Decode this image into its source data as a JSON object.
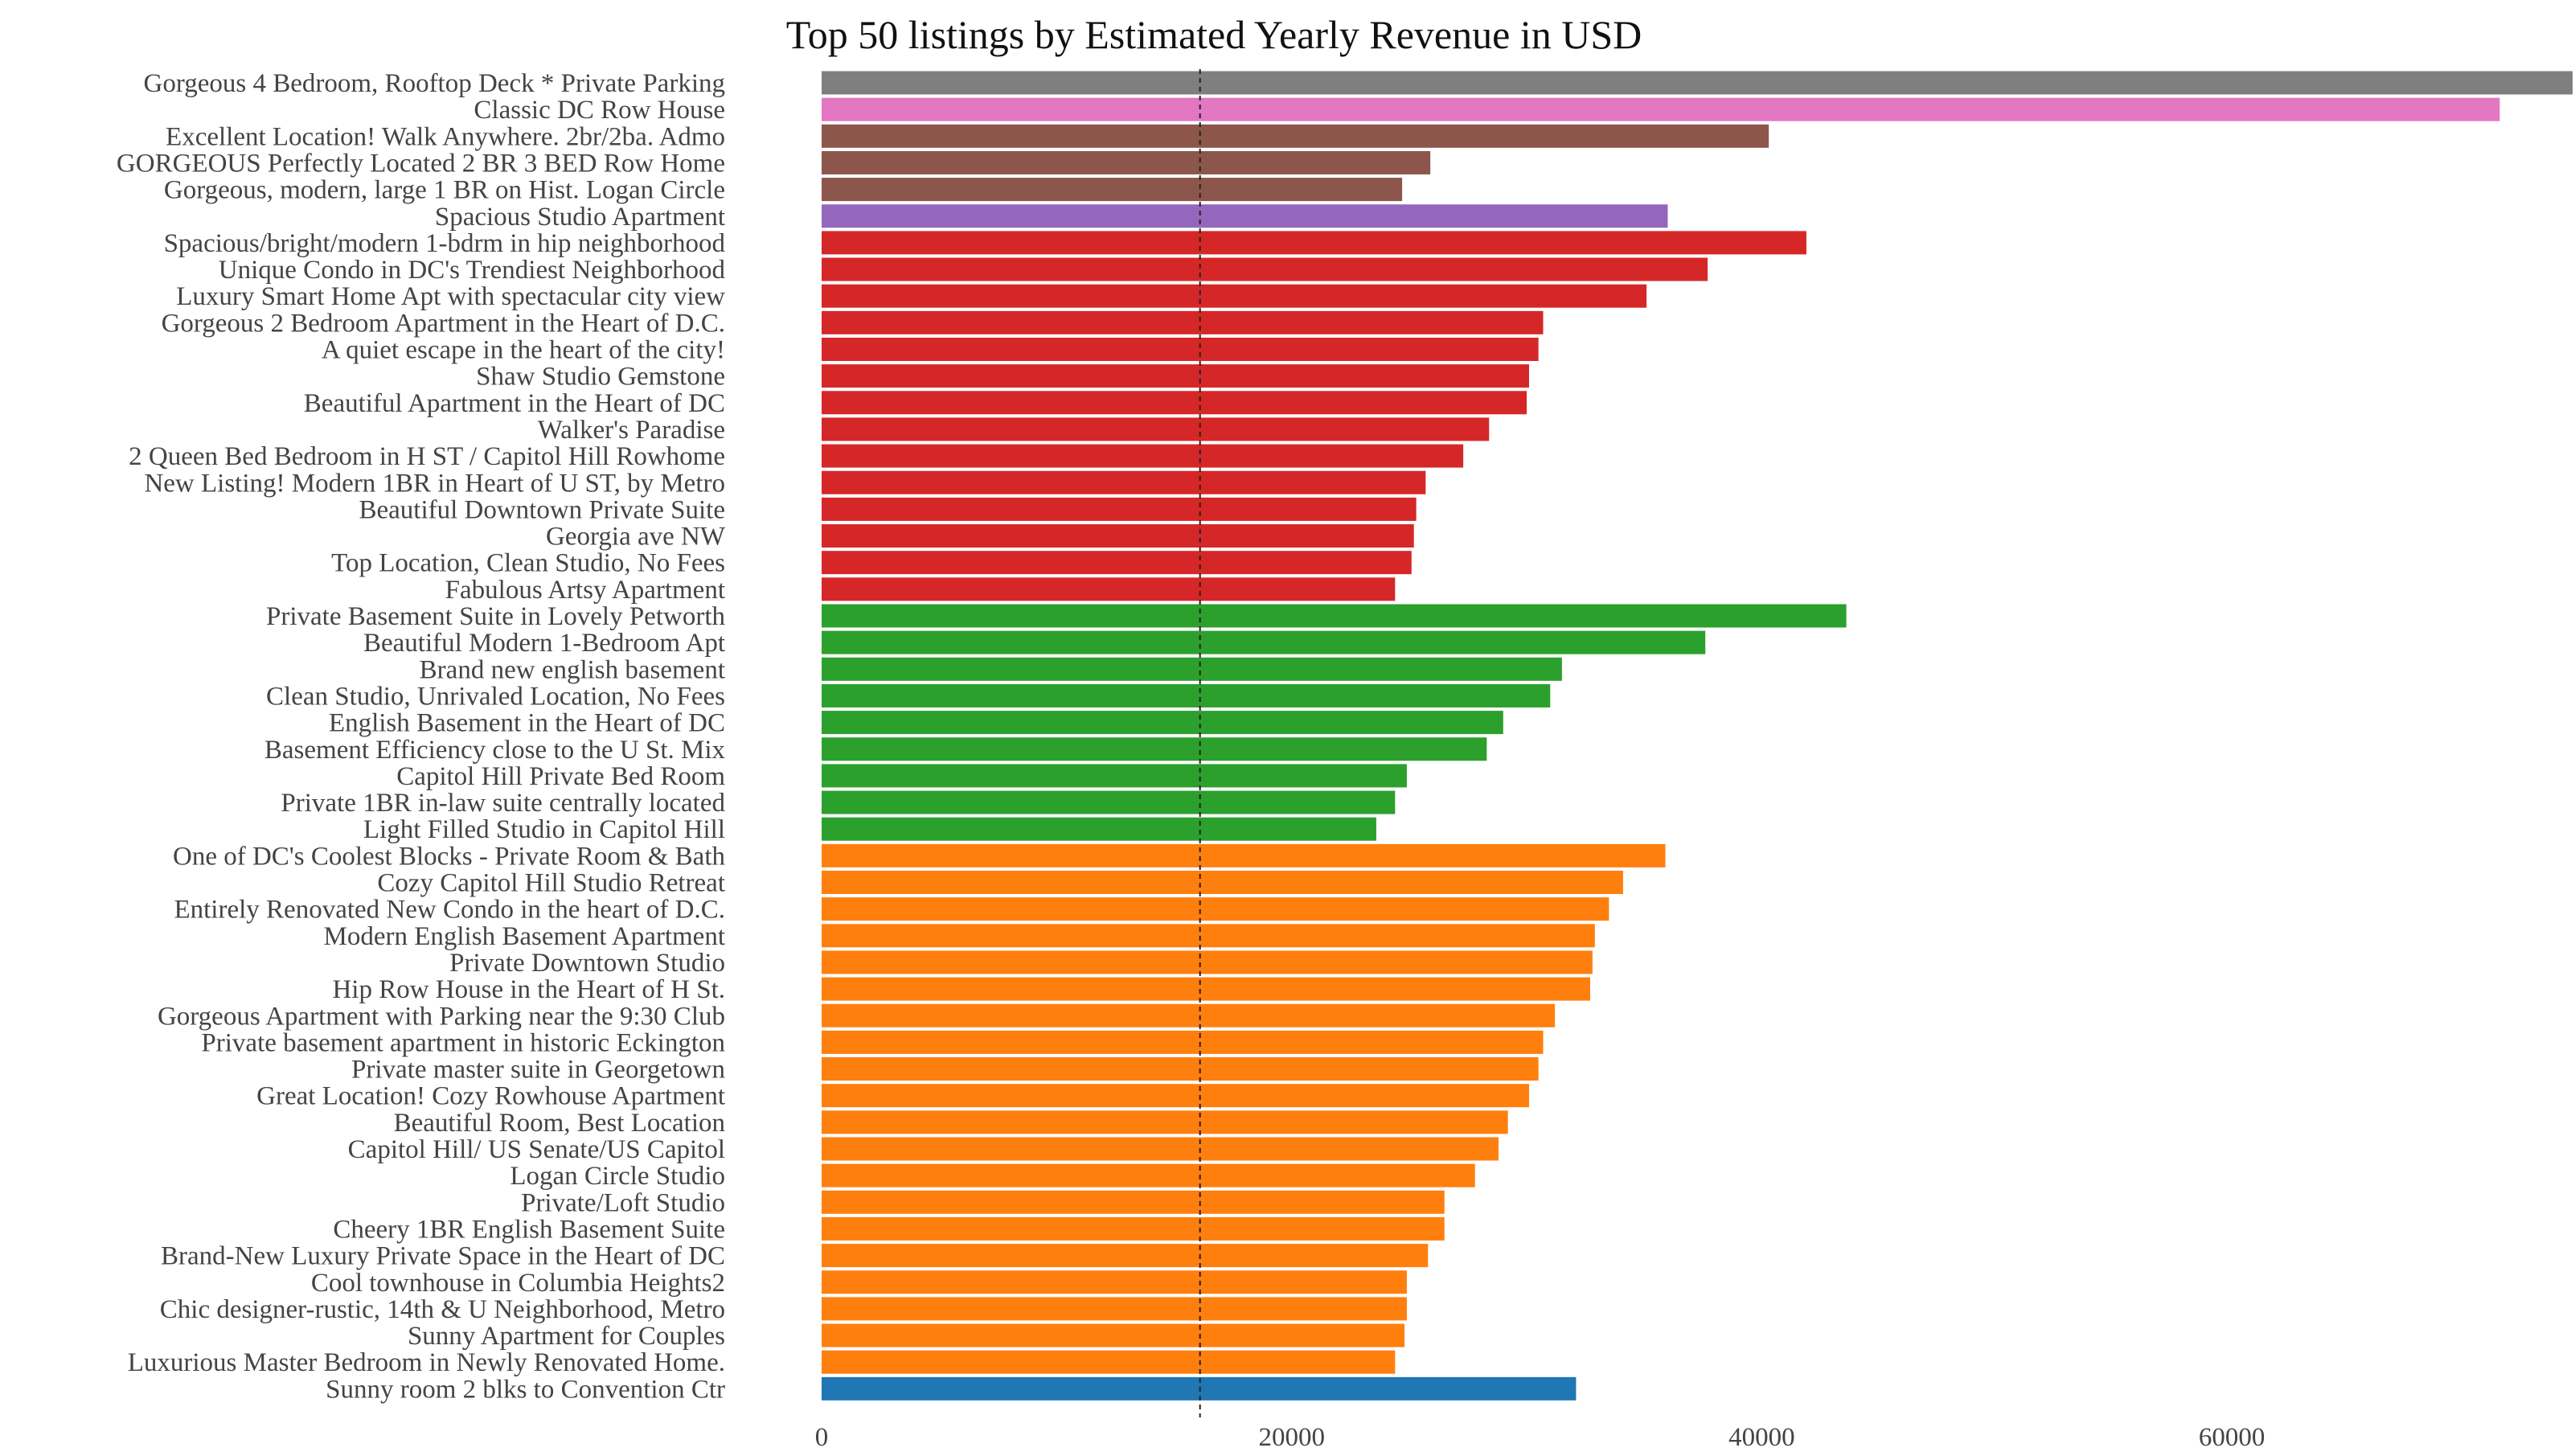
{
  "chart_data": {
    "type": "bar",
    "orientation": "horizontal",
    "title": "Top 50 listings by Estimated Yearly Revenue in USD",
    "xlabel": "",
    "ylabel": "",
    "xlim": [
      0,
      74500
    ],
    "x_ticks": [
      0,
      20000,
      40000,
      60000
    ],
    "x_tick_labels": [
      "0",
      "20000",
      "40000",
      "60000"
    ],
    "reference_line": {
      "value": 16100,
      "style": "dashed",
      "color": "#222222"
    },
    "grid": false,
    "legend": "none",
    "palette": {
      "gray": "#7f7f7f",
      "pink": "#e377c2",
      "brown": "#8c564b",
      "purple": "#9467bd",
      "red": "#d62728",
      "green": "#2ca02c",
      "orange": "#ff7f0e",
      "blue": "#1f77b4"
    },
    "bars": [
      {
        "label": "Gorgeous 4 Bedroom, Rooftop Deck * Private Parking",
        "value": 74500,
        "color": "#7f7f7f"
      },
      {
        "label": "Classic DC Row House",
        "value": 71400,
        "color": "#e377c2"
      },
      {
        "label": "Excellent Location! Walk Anywhere. 2br/2ba. Admo",
        "value": 40300,
        "color": "#8c564b"
      },
      {
        "label": "GORGEOUS Perfectly Located 2 BR 3 BED Row Home",
        "value": 25900,
        "color": "#8c564b"
      },
      {
        "label": "Gorgeous, modern, large 1 BR on Hist. Logan Circle",
        "value": 24700,
        "color": "#8c564b"
      },
      {
        "label": "Spacious Studio Apartment",
        "value": 36000,
        "color": "#9467bd"
      },
      {
        "label": "Spacious/bright/modern 1-bdrm in hip neighborhood",
        "value": 41900,
        "color": "#d62728"
      },
      {
        "label": "Unique Condo in DC's Trendiest Neighborhood",
        "value": 37700,
        "color": "#d62728"
      },
      {
        "label": "Luxury Smart Home Apt with spectacular city view",
        "value": 35100,
        "color": "#d62728"
      },
      {
        "label": "Gorgeous 2 Bedroom Apartment in the Heart of D.C.",
        "value": 30700,
        "color": "#d62728"
      },
      {
        "label": "A quiet escape in the heart of the city!",
        "value": 30500,
        "color": "#d62728"
      },
      {
        "label": "Shaw Studio Gemstone",
        "value": 30100,
        "color": "#d62728"
      },
      {
        "label": "Beautiful Apartment in the Heart of DC",
        "value": 30000,
        "color": "#d62728"
      },
      {
        "label": "Walker's Paradise",
        "value": 28400,
        "color": "#d62728"
      },
      {
        "label": "2 Queen Bed Bedroom in H ST / Capitol Hill Rowhome",
        "value": 27300,
        "color": "#d62728"
      },
      {
        "label": "New Listing! Modern 1BR in Heart of U ST, by Metro",
        "value": 25700,
        "color": "#d62728"
      },
      {
        "label": "Beautiful Downtown Private Suite",
        "value": 25300,
        "color": "#d62728"
      },
      {
        "label": "Georgia ave NW",
        "value": 25200,
        "color": "#d62728"
      },
      {
        "label": "Top Location, Clean Studio, No Fees",
        "value": 25100,
        "color": "#d62728"
      },
      {
        "label": "Fabulous Artsy Apartment",
        "value": 24400,
        "color": "#d62728"
      },
      {
        "label": "Private Basement Suite in Lovely Petworth",
        "value": 43600,
        "color": "#2ca02c"
      },
      {
        "label": "Beautiful Modern 1-Bedroom Apt",
        "value": 37600,
        "color": "#2ca02c"
      },
      {
        "label": "Brand new english basement",
        "value": 31500,
        "color": "#2ca02c"
      },
      {
        "label": "Clean Studio, Unrivaled Location, No Fees",
        "value": 31000,
        "color": "#2ca02c"
      },
      {
        "label": "English Basement in the Heart of DC",
        "value": 29000,
        "color": "#2ca02c"
      },
      {
        "label": "Basement Efficiency close to the U St. Mix",
        "value": 28300,
        "color": "#2ca02c"
      },
      {
        "label": "Capitol Hill Private Bed Room",
        "value": 24900,
        "color": "#2ca02c"
      },
      {
        "label": "Private 1BR in-law suite centrally located",
        "value": 24400,
        "color": "#2ca02c"
      },
      {
        "label": "Light Filled Studio in Capitol Hill",
        "value": 23600,
        "color": "#2ca02c"
      },
      {
        "label": "One of DC's Coolest Blocks - Private Room & Bath",
        "value": 35900,
        "color": "#ff7f0e"
      },
      {
        "label": "Cozy Capitol Hill Studio Retreat",
        "value": 34100,
        "color": "#ff7f0e"
      },
      {
        "label": "Entirely Renovated New Condo in the heart of D.C.",
        "value": 33500,
        "color": "#ff7f0e"
      },
      {
        "label": "Modern English Basement Apartment",
        "value": 32900,
        "color": "#ff7f0e"
      },
      {
        "label": "Private Downtown Studio",
        "value": 32800,
        "color": "#ff7f0e"
      },
      {
        "label": "Hip Row House in the Heart of H St.",
        "value": 32700,
        "color": "#ff7f0e"
      },
      {
        "label": "Gorgeous Apartment with Parking near the 9:30 Club",
        "value": 31200,
        "color": "#ff7f0e"
      },
      {
        "label": "Private basement apartment in historic Eckington",
        "value": 30700,
        "color": "#ff7f0e"
      },
      {
        "label": "Private master suite in Georgetown",
        "value": 30500,
        "color": "#ff7f0e"
      },
      {
        "label": "Great Location! Cozy Rowhouse Apartment",
        "value": 30100,
        "color": "#ff7f0e"
      },
      {
        "label": "Beautiful Room, Best Location",
        "value": 29200,
        "color": "#ff7f0e"
      },
      {
        "label": "Capitol Hill/ US Senate/US Capitol",
        "value": 28800,
        "color": "#ff7f0e"
      },
      {
        "label": "Logan Circle Studio",
        "value": 27800,
        "color": "#ff7f0e"
      },
      {
        "label": "Private/Loft Studio",
        "value": 26500,
        "color": "#ff7f0e"
      },
      {
        "label": "Cheery 1BR English Basement Suite",
        "value": 26500,
        "color": "#ff7f0e"
      },
      {
        "label": "Brand-New Luxury Private Space in the Heart of DC",
        "value": 25800,
        "color": "#ff7f0e"
      },
      {
        "label": "Cool townhouse in Columbia Heights2",
        "value": 24900,
        "color": "#ff7f0e"
      },
      {
        "label": "Chic designer-rustic, 14th & U Neighborhood, Metro",
        "value": 24900,
        "color": "#ff7f0e"
      },
      {
        "label": "Sunny Apartment for Couples",
        "value": 24800,
        "color": "#ff7f0e"
      },
      {
        "label": "Luxurious Master Bedroom in Newly Renovated Home.",
        "value": 24400,
        "color": "#ff7f0e"
      },
      {
        "label": "Sunny room 2 blks to Convention Ctr",
        "value": 32100,
        "color": "#1f77b4"
      }
    ]
  }
}
